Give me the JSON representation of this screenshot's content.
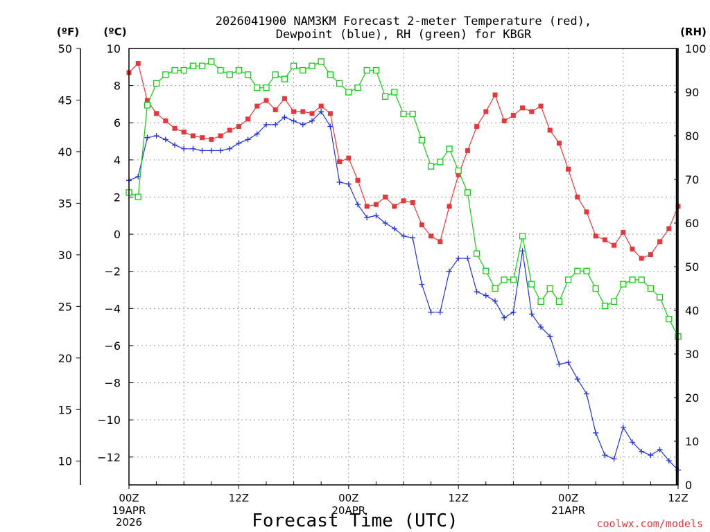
{
  "colors": {
    "temperature": "#e8373a",
    "dewpoint": "#2233dd",
    "rh": "#11cc11",
    "credit": "#e8373a"
  },
  "chart_data": {
    "type": "line",
    "title_line1": "2026041900 NAM3KM Forecast 2-meter Temperature (red),",
    "title_line2": "Dewpoint (blue), RH (green) for KBGR",
    "xlabel": "Forecast Time (UTC)",
    "credit": "coolwx.com/models",
    "unit_f": "(ºF)",
    "unit_c": "(ºC)",
    "unit_rh": "(RH)",
    "x_range_hours": [
      0,
      60
    ],
    "x_ticks": [
      {
        "hour": 0,
        "time": "00Z",
        "date": "19APR",
        "year": "2026"
      },
      {
        "hour": 12,
        "time": "12Z",
        "date": "",
        "year": ""
      },
      {
        "hour": 24,
        "time": "00Z",
        "date": "20APR",
        "year": ""
      },
      {
        "hour": 36,
        "time": "12Z",
        "date": "",
        "year": ""
      },
      {
        "hour": 48,
        "time": "00Z",
        "date": "21APR",
        "year": ""
      },
      {
        "hour": 60,
        "time": "12Z",
        "date": "",
        "year": ""
      }
    ],
    "celsius_axis": {
      "range": [
        -13.5,
        10
      ],
      "ticks": [
        10,
        8,
        6,
        4,
        2,
        0,
        -2,
        -4,
        -6,
        -8,
        -10,
        -12
      ],
      "tick_labels": [
        "10",
        "8",
        "6",
        "4",
        "2",
        "0",
        "−2",
        "−4",
        "−6",
        "−8",
        "−10",
        "−12"
      ]
    },
    "fahrenheit_axis": {
      "ticks": [
        50,
        45,
        40,
        35,
        30,
        25,
        20,
        15,
        10
      ],
      "tick_labels": [
        "50",
        "45",
        "40",
        "35",
        "30",
        "25",
        "20",
        "15",
        "10"
      ]
    },
    "rh_axis": {
      "range": [
        0,
        100
      ],
      "ticks": [
        100,
        90,
        80,
        70,
        60,
        50,
        40,
        30,
        20,
        10,
        0
      ],
      "tick_labels": [
        "100",
        "90",
        "80",
        "70",
        "60",
        "50",
        "40",
        "30",
        "20",
        "10",
        "0"
      ]
    },
    "series": [
      {
        "name": "Temperature",
        "axis": "celsius",
        "marker": "filled-square",
        "color_key": "temperature",
        "values": [
          8.7,
          9.2,
          7.2,
          6.5,
          6.1,
          5.7,
          5.5,
          5.3,
          5.2,
          5.1,
          5.3,
          5.6,
          5.8,
          6.2,
          6.9,
          7.2,
          6.7,
          7.3,
          6.6,
          6.6,
          6.5,
          6.9,
          6.5,
          3.9,
          4.1,
          2.9,
          1.5,
          1.6,
          2.0,
          1.5,
          1.8,
          1.7,
          0.5,
          -0.1,
          -0.4,
          1.5,
          3.2,
          4.5,
          5.8,
          6.6,
          7.5,
          6.1,
          6.4,
          6.8,
          6.6,
          6.9,
          5.6,
          4.9,
          3.5,
          2.0,
          1.2,
          -0.1,
          -0.3,
          -0.6,
          0.1,
          -0.8,
          -1.3,
          -1.1,
          -0.4,
          0.3,
          1.5
        ]
      },
      {
        "name": "Dewpoint",
        "axis": "celsius",
        "marker": "plus",
        "color_key": "dewpoint",
        "values": [
          2.9,
          3.1,
          5.2,
          5.3,
          5.1,
          4.8,
          4.6,
          4.6,
          4.5,
          4.5,
          4.5,
          4.6,
          4.9,
          5.1,
          5.4,
          5.9,
          5.9,
          6.3,
          6.1,
          5.9,
          6.1,
          6.6,
          5.8,
          2.8,
          2.7,
          1.6,
          0.9,
          1.0,
          0.6,
          0.3,
          -0.1,
          -0.2,
          -2.7,
          -4.2,
          -4.2,
          -2.0,
          -1.3,
          -1.3,
          -3.1,
          -3.3,
          -3.6,
          -4.5,
          -4.2,
          -0.9,
          -4.3,
          -5.0,
          -5.5,
          -7.0,
          -6.9,
          -7.8,
          -8.6,
          -10.7,
          -11.9,
          -12.1,
          -10.4,
          -11.2,
          -11.7,
          -11.9,
          -11.6,
          -12.2,
          -12.7
        ]
      },
      {
        "name": "RH",
        "axis": "rh",
        "marker": "open-square",
        "color_key": "rh",
        "values": [
          67,
          66,
          87,
          92,
          94,
          95,
          95,
          96,
          96,
          97,
          95,
          94,
          95,
          94,
          91,
          91,
          94,
          93,
          96,
          95,
          96,
          97,
          94,
          92,
          90,
          91,
          95,
          95,
          89,
          90,
          85,
          85,
          79,
          73,
          74,
          77,
          72,
          67,
          53,
          49,
          45,
          47,
          47,
          57,
          46,
          42,
          45,
          42,
          47,
          49,
          49,
          45,
          41,
          42,
          46,
          47,
          47,
          45,
          43,
          38,
          34
        ]
      }
    ]
  }
}
